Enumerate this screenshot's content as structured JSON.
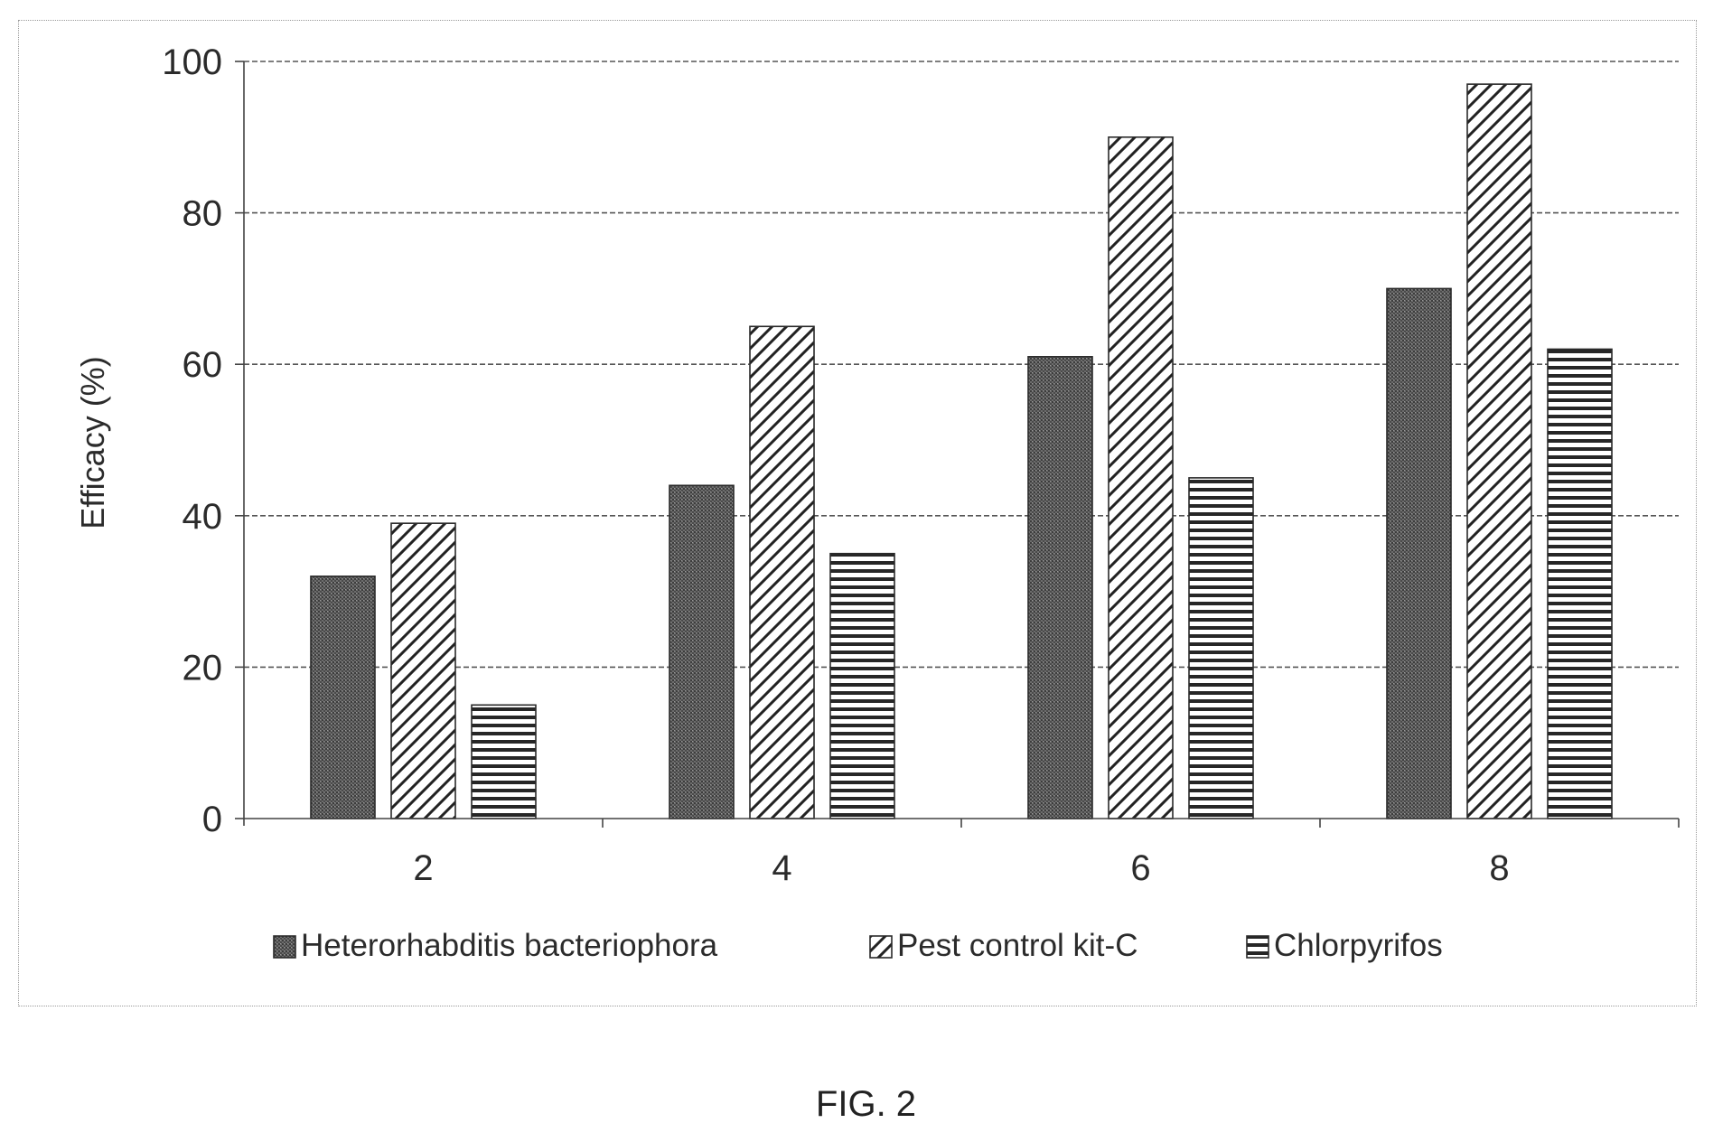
{
  "chart_data": {
    "type": "bar",
    "categories": [
      "2",
      "4",
      "6",
      "8"
    ],
    "series": [
      {
        "name": "Heterorhabditis bacteriophora",
        "values": [
          32,
          44,
          61,
          70
        ],
        "pattern": "dense-stipple"
      },
      {
        "name": "Pest control kit-C",
        "values": [
          39,
          65,
          90,
          97
        ],
        "pattern": "diagonal-hatch"
      },
      {
        "name": "Chlorpyrifos",
        "values": [
          15,
          35,
          45,
          62
        ],
        "pattern": "horizontal-lines"
      }
    ],
    "title": "",
    "xlabel": "",
    "ylabel": "Efficacy (%)",
    "ylim": [
      0,
      100
    ],
    "yticks": [
      0,
      20,
      40,
      60,
      80,
      100
    ],
    "grid": true,
    "legend": "bottom",
    "colors": {
      "bar_stroke": "#2a2a2a",
      "grid": "#555555",
      "text": "#2b2b2b"
    }
  },
  "caption": "FIG. 2"
}
